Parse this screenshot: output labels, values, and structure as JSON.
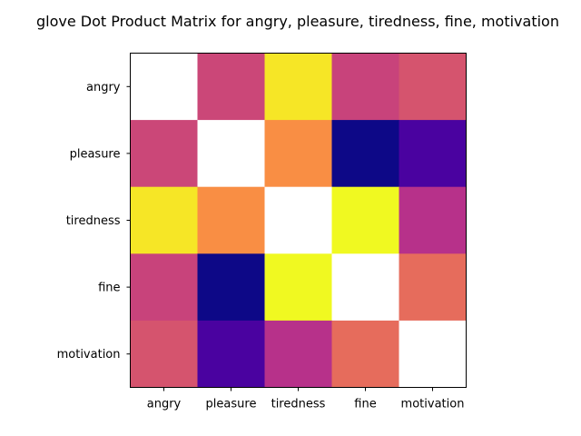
{
  "chart_data": {
    "type": "heatmap",
    "title": "glove Dot Product Matrix for angry, pleasure, tiredness, fine, motivation",
    "xlabel": "",
    "ylabel": "",
    "x_categories": [
      "angry",
      "pleasure",
      "tiredness",
      "fine",
      "motivation"
    ],
    "y_categories": [
      "angry",
      "pleasure",
      "tiredness",
      "fine",
      "motivation"
    ],
    "colormap": "plasma",
    "diagonal_masked": true,
    "grid": false,
    "legend": "none",
    "cells": [
      [
        null,
        "#cb4778",
        "#f6e626",
        "#c8437b",
        "#d5546e"
      ],
      [
        "#cb4778",
        null,
        "#f98e44",
        "#0d0887",
        "#4a02a0"
      ],
      [
        "#f6e626",
        "#f98e44",
        null,
        "#f0f921",
        "#b7318a"
      ],
      [
        "#c8437b",
        "#0d0887",
        "#f0f921",
        null,
        "#e66c5c"
      ],
      [
        "#d5546e",
        "#4a02a0",
        "#b7318a",
        "#e66c5c",
        null
      ]
    ],
    "mask_color": "#ffffff",
    "frame_color": "#000000"
  }
}
